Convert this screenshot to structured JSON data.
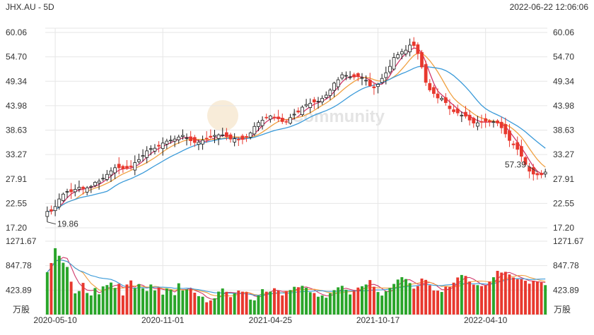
{
  "header": {
    "ticker": "JHX.AU - 5D",
    "timestamp": "2022-06-22 12:06:06"
  },
  "watermark": {
    "text": "Community",
    "icon": "logo-egg-icon"
  },
  "colors": {
    "up": "#2aa52a",
    "down": "#e8382e",
    "ma_short": "#d0386b",
    "ma_mid": "#f0a040",
    "ma_long": "#3a9ad9",
    "grid": "#e6e6e6",
    "axis_text": "#333333"
  },
  "annotations": {
    "high": {
      "label": "57.39",
      "x_index": 123
    },
    "low": {
      "label": "19.86",
      "x_index": 0
    }
  },
  "chart_data": [
    {
      "type": "candlestick",
      "title": "JHX.AU - 5D",
      "y_ticks": [
        "60.06",
        "54.70",
        "49.34",
        "43.98",
        "38.63",
        "33.27",
        "27.91",
        "22.55",
        "17.20"
      ],
      "ylim": [
        17.2,
        60.06
      ],
      "x_ticks": [
        {
          "label": "2020-05-10",
          "index": 2
        },
        {
          "label": "2020-11-01",
          "index": 29
        },
        {
          "label": "2021-04-25",
          "index": 56
        },
        {
          "label": "2021-10-17",
          "index": 83
        },
        {
          "label": "2022-04-10",
          "index": 110
        }
      ],
      "n_bars": 126,
      "close_series": [
        20.79,
        20.86,
        21.86,
        23.53,
        24.59,
        25.17,
        25.09,
        25.64,
        26.09,
        25.8,
        25.98,
        26.3,
        27.18,
        27.42,
        28.06,
        28.92,
        29.69,
        30.38,
        30.36,
        30.12,
        30.2,
        30.6,
        31.51,
        32.16,
        33.05,
        34.08,
        34.56,
        34.66,
        35.1,
        35.79,
        36.22,
        36.42,
        36.67,
        37.12,
        37.46,
        36.94,
        36.3,
        35.91,
        35.96,
        36.41,
        36.73,
        37.05,
        37.47,
        37.59,
        37.59,
        37.22,
        36.66,
        36.74,
        36.57,
        36.59,
        37.11,
        38.03,
        39.44,
        40.28,
        40.8,
        41.37,
        41.75,
        41.33,
        41.11,
        40.5,
        40.49,
        41.37,
        42.11,
        42.6,
        43.66,
        44.25,
        44.53,
        44.79,
        44.98,
        45.61,
        46.3,
        47.41,
        48.94,
        49.67,
        50.77,
        50.62,
        50.29,
        50.28,
        50.37,
        50.14,
        49.56,
        48.34,
        47.9,
        48.67,
        49.97,
        51.21,
        52.61,
        54.55,
        55.18,
        55.85,
        56.17,
        57.28,
        57.18,
        55.42,
        52.48,
        49.11,
        47.45,
        46.65,
        45.68,
        45.61,
        44.66,
        43.33,
        42.67,
        42.4,
        41.91,
        41.68,
        40.83,
        40.18,
        40.23,
        40.45,
        40.55,
        40.38,
        40.46,
        40.18,
        39.14,
        37.8,
        36.36,
        35.4,
        34.41,
        32.9,
        31.1,
        29.62,
        28.98,
        28.81,
        28.83,
        29.42
      ],
      "volume_axis": {
        "ticks": [
          "1271.67",
          "847.78",
          "423.89"
        ],
        "unit": "万股",
        "max": 1271.67
      },
      "volume_series": [
        734,
        893,
        1150,
        1019,
        898,
        825,
        570,
        367,
        408,
        549,
        374,
        331,
        460,
        351,
        488,
        511,
        555,
        462,
        533,
        331,
        521,
        591,
        457,
        528,
        454,
        409,
        521,
        418,
        468,
        345,
        452,
        430,
        336,
        542,
        417,
        435,
        448,
        379,
        319,
        309,
        213,
        244,
        282,
        398,
        452,
        395,
        302,
        368,
        416,
        397,
        387,
        259,
        246,
        329,
        440,
        397,
        399,
        456,
        415,
        332,
        409,
        424,
        481,
        474,
        498,
        464,
        387,
        373,
        309,
        331,
        291,
        370,
        423,
        472,
        498,
        430,
        348,
        408,
        468,
        491,
        521,
        598,
        482,
        390,
        329,
        403,
        461,
        531,
        607,
        648,
        616,
        546,
        449,
        493,
        624,
        601,
        508,
        417,
        415,
        391,
        482,
        478,
        553,
        643,
        686,
        670,
        573,
        519,
        510,
        494,
        503,
        572,
        647,
        758,
        728,
        741,
        695,
        642,
        613,
        614,
        586,
        535,
        586,
        574,
        557,
        510
      ],
      "series": [
        {
          "name": "",
          "role": "ma-short"
        },
        {
          "name": "",
          "role": "ma-mid"
        },
        {
          "name": "",
          "role": "ma-long"
        }
      ]
    }
  ]
}
